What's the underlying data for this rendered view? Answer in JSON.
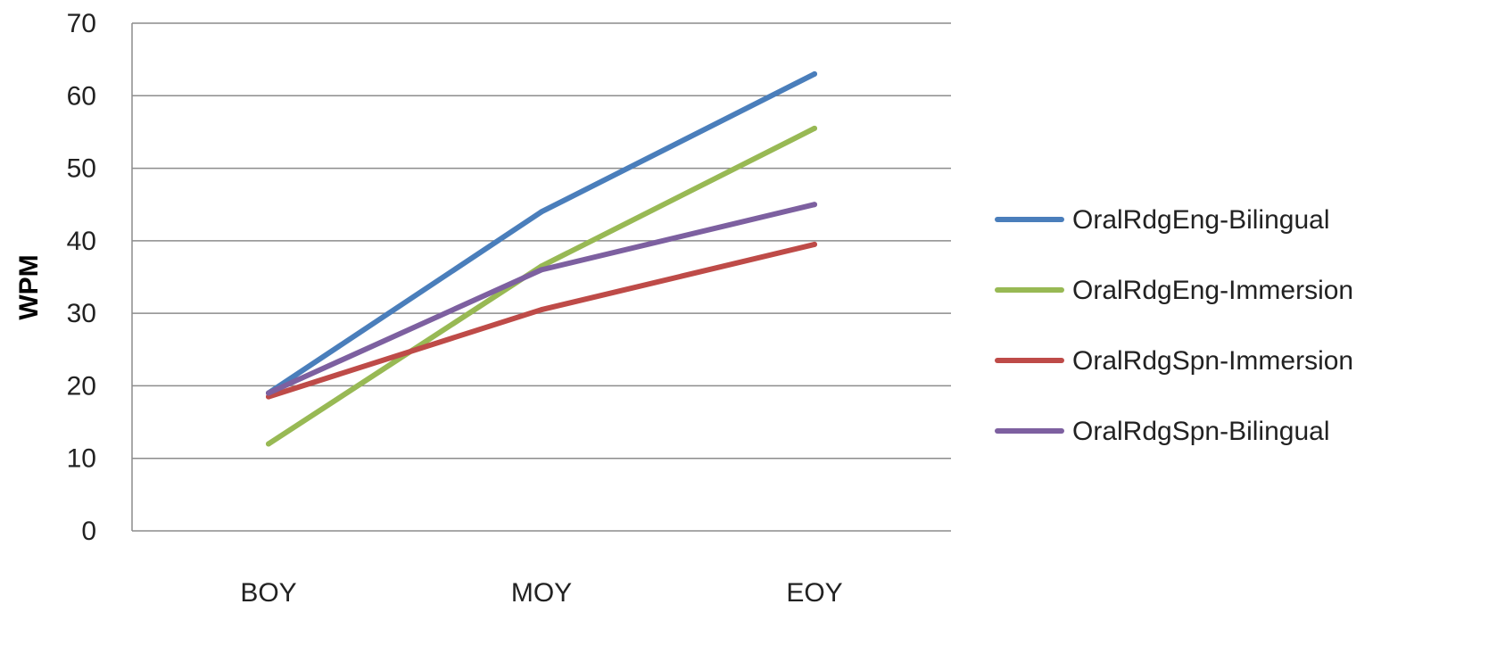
{
  "chart_data": {
    "type": "line",
    "title": "",
    "xlabel": "",
    "ylabel": "WPM",
    "categories": [
      "BOY",
      "MOY",
      "EOY"
    ],
    "ylim": [
      0,
      70
    ],
    "yticks": [
      0,
      10,
      20,
      30,
      40,
      50,
      60,
      70
    ],
    "grid": true,
    "legend_position": "right",
    "series": [
      {
        "name": "OralRdgEng-Bilingual",
        "color": "#4a7ebb",
        "values": [
          19,
          44,
          63
        ]
      },
      {
        "name": "OralRdgEng-Immersion",
        "color": "#98b954",
        "values": [
          12,
          36.5,
          55.5
        ]
      },
      {
        "name": "OralRdgSpn-Immersion",
        "color": "#be4b48",
        "values": [
          18.5,
          30.5,
          39.5
        ]
      },
      {
        "name": "OralRdgSpn-Bilingual",
        "color": "#7d60a0",
        "values": [
          19,
          36,
          45
        ]
      }
    ]
  }
}
